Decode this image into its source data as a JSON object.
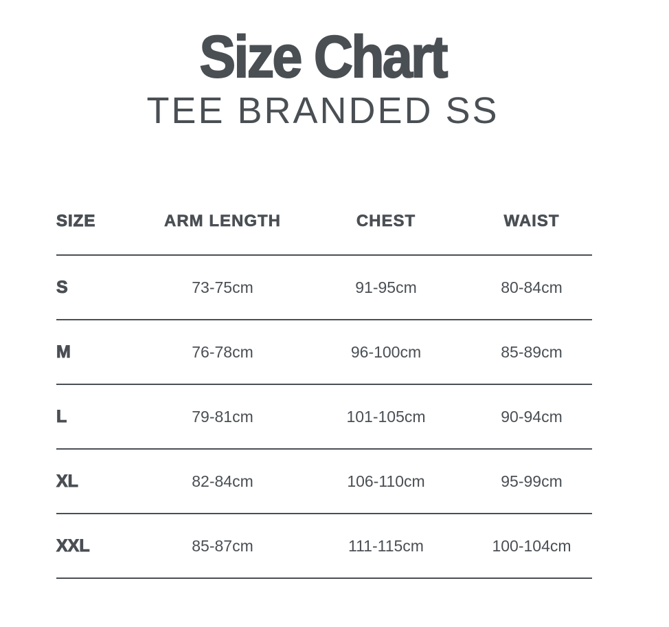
{
  "title": "Size Chart",
  "subtitle": "TEE BRANDED SS",
  "colors": {
    "text": "#4a4f54",
    "rule": "#4a4f54"
  },
  "table": {
    "headers": [
      "SIZE",
      "ARM LENGTH",
      "CHEST",
      "WAIST"
    ],
    "rows": [
      [
        "S",
        "73-75cm",
        "91-95cm",
        "80-84cm"
      ],
      [
        "M",
        "76-78cm",
        "96-100cm",
        "85-89cm"
      ],
      [
        "L",
        "79-81cm",
        "101-105cm",
        "90-94cm"
      ],
      [
        "XL",
        "82-84cm",
        "106-110cm",
        "95-99cm"
      ],
      [
        "XXL",
        "85-87cm",
        "111-115cm",
        "100-104cm"
      ]
    ]
  }
}
